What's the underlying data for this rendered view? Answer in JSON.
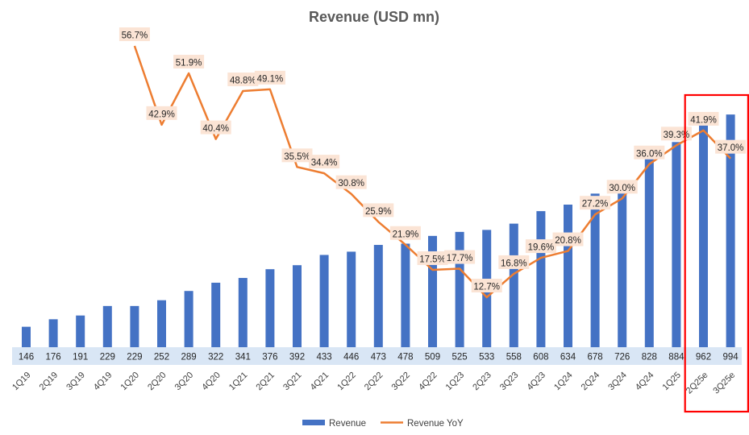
{
  "chart_data": {
    "type": "bar",
    "title": "Revenue (USD mn)",
    "categories": [
      "1Q19",
      "2Q19",
      "3Q19",
      "4Q19",
      "1Q20",
      "2Q20",
      "3Q20",
      "4Q20",
      "1Q21",
      "2Q21",
      "3Q21",
      "4Q21",
      "1Q22",
      "2Q22",
      "3Q22",
      "4Q22",
      "1Q23",
      "2Q23",
      "3Q23",
      "4Q23",
      "1Q24",
      "2Q24",
      "3Q24",
      "4Q24",
      "1Q25",
      "2Q25e",
      "3Q25e"
    ],
    "series": [
      {
        "name": "Revenue",
        "type": "bar",
        "color": "#4472C4",
        "values": [
          146,
          176,
          191,
          229,
          229,
          252,
          289,
          322,
          341,
          376,
          392,
          433,
          446,
          473,
          478,
          509,
          525,
          533,
          558,
          608,
          634,
          678,
          726,
          828,
          884,
          962,
          994
        ],
        "labels": [
          "146",
          "176",
          "191",
          "229",
          "229",
          "252",
          "289",
          "322",
          "341",
          "376",
          "392",
          "433",
          "446",
          "473",
          "478",
          "509",
          "525",
          "533",
          "558",
          "608",
          "634",
          "678",
          "726",
          "828",
          "884",
          "962",
          "994"
        ]
      },
      {
        "name": "Revenue YoY",
        "type": "line",
        "color": "#ED7D31",
        "values": [
          null,
          null,
          null,
          null,
          56.7,
          42.9,
          51.9,
          40.4,
          48.8,
          49.1,
          35.5,
          34.4,
          30.8,
          25.9,
          21.9,
          17.5,
          17.7,
          12.7,
          16.8,
          19.6,
          20.8,
          27.2,
          30.0,
          36.0,
          39.3,
          41.9,
          37.0
        ],
        "labels": [
          "",
          "",
          "",
          "",
          "56.7%",
          "42.9%",
          "51.9%",
          "40.4%",
          "48.8%",
          "49.1%",
          "35.5%",
          "34.4%",
          "30.8%",
          "25.9%",
          "21.9%",
          "17.5%",
          "17.7%",
          "12.7%",
          "16.8%",
          "19.6%",
          "20.8%",
          "27.2%",
          "30.0%",
          "36.0%",
          "39.3%",
          "41.9%",
          "37.0%"
        ]
      }
    ],
    "highlight": {
      "categories": [
        "2Q25e",
        "3Q25e"
      ],
      "color": "#FF0000"
    },
    "legend": "bottom",
    "grid": false
  }
}
